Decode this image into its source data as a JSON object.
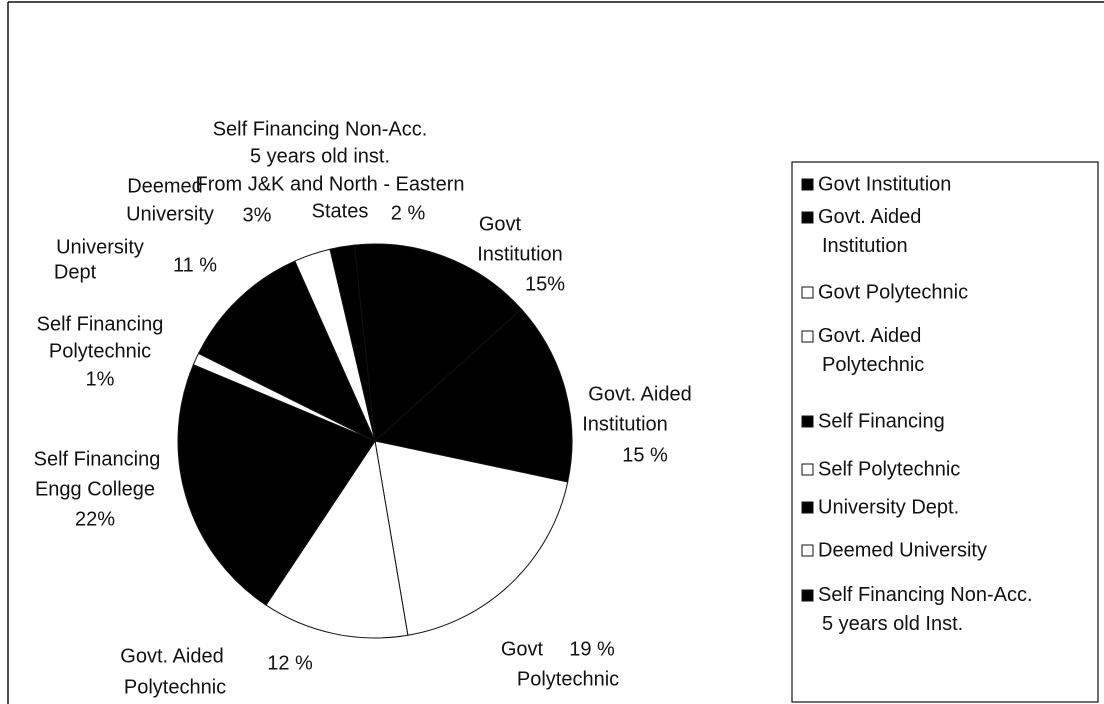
{
  "chart_data": {
    "type": "pie",
    "categories": [
      "Govt Institution",
      "Govt. Aided Institution",
      "Govt Polytechnic",
      "Govt. Aided Polytechnic",
      "Self Financing",
      "Self Polytechnic",
      "University Dept.",
      "Deemed University",
      "Self Financing Non-Acc. 5 years old Inst."
    ],
    "values": [
      15,
      15,
      19,
      12,
      22,
      1,
      11,
      3,
      2
    ],
    "value_labels": [
      "15%",
      "15 %",
      "19 %",
      "12 %",
      "22%",
      "1%",
      "11 %",
      "3%",
      "2 %"
    ],
    "slice_labels": [
      [
        "Govt",
        "Institution"
      ],
      [
        "Govt. Aided",
        "Institution"
      ],
      [
        "Govt",
        "Polytechnic"
      ],
      [
        "Govt. Aided",
        "Polytechnic"
      ],
      [
        "Self Financing",
        "Engg College"
      ],
      [
        "Self Financing",
        "Polytechnic"
      ],
      [
        "University",
        "Dept"
      ],
      [
        "Deemed",
        "University"
      ],
      [
        "Self Financing Non-Acc.",
        "5 years old inst.",
        "From  J&K and North - Eastern",
        "States"
      ]
    ],
    "colors": [
      "#000000",
      "#000000",
      "#ffffff",
      "#ffffff",
      "#000000",
      "#ffffff",
      "#000000",
      "#ffffff",
      "#000000"
    ],
    "legend": "right"
  }
}
